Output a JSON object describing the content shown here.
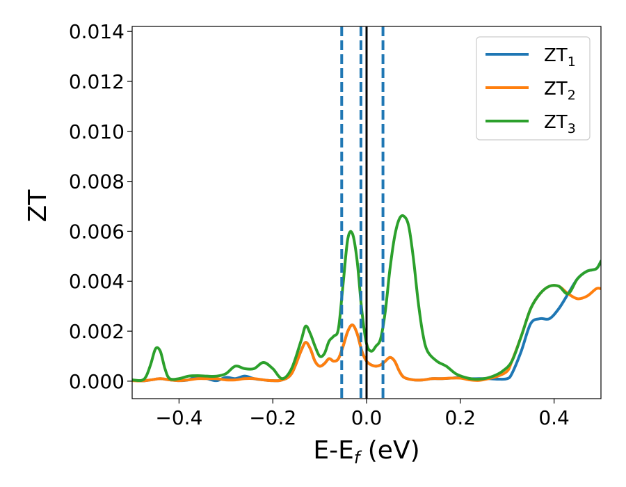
{
  "chart_data": {
    "type": "line",
    "xlabel_main": "E-E",
    "xlabel_sub": "f",
    "xlabel_unit": " (eV)",
    "ylabel": "ZT",
    "xlim": [
      -0.5,
      0.5
    ],
    "ylim": [
      -0.0007,
      0.0142
    ],
    "x_ticks": [
      -0.4,
      -0.2,
      0.0,
      0.2,
      0.4
    ],
    "x_tick_labels": [
      "−0.4",
      "−0.2",
      "0.0",
      "0.2",
      "0.4"
    ],
    "y_ticks": [
      0.0,
      0.002,
      0.004,
      0.006,
      0.008,
      0.01,
      0.012,
      0.014
    ],
    "y_tick_labels": [
      "0.000",
      "0.002",
      "0.004",
      "0.006",
      "0.008",
      "0.010",
      "0.012",
      "0.014"
    ],
    "legend_position": "top-right",
    "vertical_lines": [
      {
        "x": -0.053,
        "style": "dashed",
        "color": "#1f77b4"
      },
      {
        "x": -0.012,
        "style": "dashed",
        "color": "#1f77b4"
      },
      {
        "x": 0.0,
        "style": "solid",
        "color": "#000000"
      },
      {
        "x": 0.035,
        "style": "dashed",
        "color": "#1f77b4"
      }
    ],
    "series": [
      {
        "name": "ZT",
        "sub": "1",
        "color": "#1f77b4",
        "points": [
          [
            -0.5,
            5e-05
          ],
          [
            -0.48,
            1e-05
          ],
          [
            -0.46,
            5e-05
          ],
          [
            -0.44,
            0.0001
          ],
          [
            -0.42,
            5e-05
          ],
          [
            -0.4,
            2e-05
          ],
          [
            -0.38,
            5e-05
          ],
          [
            -0.36,
            0.0002
          ],
          [
            -0.34,
            0.0001
          ],
          [
            -0.32,
            2e-05
          ],
          [
            -0.3,
            0.00015
          ],
          [
            -0.28,
            0.0001
          ],
          [
            -0.26,
            0.0002
          ],
          [
            -0.24,
            0.0001
          ],
          [
            -0.22,
            5e-05
          ],
          [
            -0.2,
            2e-05
          ],
          [
            -0.18,
            5e-05
          ],
          [
            -0.16,
            0.0003
          ],
          [
            -0.14,
            0.0012
          ],
          [
            -0.13,
            0.00155
          ],
          [
            -0.12,
            0.0013
          ],
          [
            -0.11,
            0.0008
          ],
          [
            -0.1,
            0.0006
          ],
          [
            -0.09,
            0.0007
          ],
          [
            -0.08,
            0.0009
          ],
          [
            -0.07,
            0.0008
          ],
          [
            -0.06,
            0.0009
          ],
          [
            -0.05,
            0.0014
          ],
          [
            -0.04,
            0.002
          ],
          [
            -0.03,
            0.00225
          ],
          [
            -0.02,
            0.0019
          ],
          [
            -0.01,
            0.0012
          ],
          [
            0.0,
            0.0008
          ],
          [
            0.01,
            0.00065
          ],
          [
            0.02,
            0.0006
          ],
          [
            0.03,
            0.00065
          ],
          [
            0.04,
            0.0008
          ],
          [
            0.05,
            0.00095
          ],
          [
            0.06,
            0.0008
          ],
          [
            0.07,
            0.0004
          ],
          [
            0.08,
            0.00015
          ],
          [
            0.1,
            5e-05
          ],
          [
            0.12,
            5e-05
          ],
          [
            0.14,
            0.0001
          ],
          [
            0.16,
            0.0001
          ],
          [
            0.18,
            0.00012
          ],
          [
            0.2,
            0.00015
          ],
          [
            0.22,
            0.0001
          ],
          [
            0.24,
            0.0001
          ],
          [
            0.26,
            0.0001
          ],
          [
            0.28,
            8e-05
          ],
          [
            0.3,
            0.0001
          ],
          [
            0.31,
            0.0003
          ],
          [
            0.33,
            0.0012
          ],
          [
            0.35,
            0.0023
          ],
          [
            0.37,
            0.0025
          ],
          [
            0.39,
            0.0025
          ],
          [
            0.41,
            0.0029
          ],
          [
            0.43,
            0.0035
          ],
          [
            0.45,
            0.0041
          ],
          [
            0.47,
            0.0044
          ],
          [
            0.49,
            0.0045
          ],
          [
            0.5,
            0.0048
          ]
        ]
      },
      {
        "name": "ZT",
        "sub": "2",
        "color": "#ff7f0e",
        "points": [
          [
            -0.5,
            2e-05
          ],
          [
            -0.48,
            1e-05
          ],
          [
            -0.46,
            5e-05
          ],
          [
            -0.44,
            0.0001
          ],
          [
            -0.42,
            5e-05
          ],
          [
            -0.4,
            2e-05
          ],
          [
            -0.38,
            5e-05
          ],
          [
            -0.36,
            0.0001
          ],
          [
            -0.34,
            0.0001
          ],
          [
            -0.32,
            0.0001
          ],
          [
            -0.3,
            5e-05
          ],
          [
            -0.28,
            5e-05
          ],
          [
            -0.26,
            0.0001
          ],
          [
            -0.24,
            0.0001
          ],
          [
            -0.22,
            5e-05
          ],
          [
            -0.2,
            2e-05
          ],
          [
            -0.18,
            5e-05
          ],
          [
            -0.16,
            0.0003
          ],
          [
            -0.14,
            0.0012
          ],
          [
            -0.13,
            0.00155
          ],
          [
            -0.12,
            0.0013
          ],
          [
            -0.11,
            0.0008
          ],
          [
            -0.1,
            0.0006
          ],
          [
            -0.09,
            0.0007
          ],
          [
            -0.08,
            0.0009
          ],
          [
            -0.07,
            0.0008
          ],
          [
            -0.06,
            0.0009
          ],
          [
            -0.05,
            0.0014
          ],
          [
            -0.04,
            0.002
          ],
          [
            -0.03,
            0.00225
          ],
          [
            -0.02,
            0.0019
          ],
          [
            -0.01,
            0.0012
          ],
          [
            0.0,
            0.0008
          ],
          [
            0.01,
            0.00065
          ],
          [
            0.02,
            0.0006
          ],
          [
            0.03,
            0.00065
          ],
          [
            0.04,
            0.0008
          ],
          [
            0.05,
            0.00095
          ],
          [
            0.06,
            0.0008
          ],
          [
            0.07,
            0.0004
          ],
          [
            0.08,
            0.00015
          ],
          [
            0.1,
            5e-05
          ],
          [
            0.12,
            5e-05
          ],
          [
            0.14,
            0.0001
          ],
          [
            0.16,
            0.0001
          ],
          [
            0.18,
            0.00012
          ],
          [
            0.2,
            0.00012
          ],
          [
            0.22,
            5e-05
          ],
          [
            0.24,
            3e-05
          ],
          [
            0.26,
            0.0001
          ],
          [
            0.28,
            0.0002
          ],
          [
            0.3,
            0.0004
          ],
          [
            0.31,
            0.0008
          ],
          [
            0.33,
            0.0018
          ],
          [
            0.35,
            0.0029
          ],
          [
            0.37,
            0.0035
          ],
          [
            0.39,
            0.0038
          ],
          [
            0.41,
            0.0038
          ],
          [
            0.43,
            0.0035
          ],
          [
            0.45,
            0.0033
          ],
          [
            0.47,
            0.0034
          ],
          [
            0.49,
            0.0037
          ],
          [
            0.5,
            0.0037
          ]
        ]
      },
      {
        "name": "ZT",
        "sub": "3",
        "color": "#2ca02c",
        "points": [
          [
            -0.5,
            5e-05
          ],
          [
            -0.48,
            3e-05
          ],
          [
            -0.47,
            0.0002
          ],
          [
            -0.46,
            0.0007
          ],
          [
            -0.45,
            0.0013
          ],
          [
            -0.44,
            0.0012
          ],
          [
            -0.43,
            0.0005
          ],
          [
            -0.42,
            0.0001
          ],
          [
            -0.4,
            0.0001
          ],
          [
            -0.38,
            0.0002
          ],
          [
            -0.36,
            0.00022
          ],
          [
            -0.34,
            0.0002
          ],
          [
            -0.32,
            0.0002
          ],
          [
            -0.3,
            0.0003
          ],
          [
            -0.28,
            0.0006
          ],
          [
            -0.26,
            0.0005
          ],
          [
            -0.24,
            0.0005
          ],
          [
            -0.22,
            0.00075
          ],
          [
            -0.2,
            0.0005
          ],
          [
            -0.18,
            0.0001
          ],
          [
            -0.16,
            0.0005
          ],
          [
            -0.14,
            0.0016
          ],
          [
            -0.13,
            0.0022
          ],
          [
            -0.12,
            0.0019
          ],
          [
            -0.11,
            0.0014
          ],
          [
            -0.1,
            0.001
          ],
          [
            -0.09,
            0.0011
          ],
          [
            -0.08,
            0.0016
          ],
          [
            -0.07,
            0.0018
          ],
          [
            -0.06,
            0.0021
          ],
          [
            -0.05,
            0.0039
          ],
          [
            -0.04,
            0.0057
          ],
          [
            -0.03,
            0.0059
          ],
          [
            -0.02,
            0.0048
          ],
          [
            -0.01,
            0.0028
          ],
          [
            0.0,
            0.0015
          ],
          [
            0.01,
            0.0012
          ],
          [
            0.02,
            0.0014
          ],
          [
            0.03,
            0.0017
          ],
          [
            0.04,
            0.0028
          ],
          [
            0.05,
            0.0045
          ],
          [
            0.06,
            0.0058
          ],
          [
            0.07,
            0.0065
          ],
          [
            0.08,
            0.0066
          ],
          [
            0.09,
            0.0062
          ],
          [
            0.1,
            0.0049
          ],
          [
            0.11,
            0.0032
          ],
          [
            0.12,
            0.0019
          ],
          [
            0.13,
            0.0012
          ],
          [
            0.15,
            0.0008
          ],
          [
            0.17,
            0.0006
          ],
          [
            0.19,
            0.0003
          ],
          [
            0.21,
            0.00015
          ],
          [
            0.23,
            8e-05
          ],
          [
            0.25,
            0.0001
          ],
          [
            0.27,
            0.0002
          ],
          [
            0.29,
            0.0004
          ],
          [
            0.31,
            0.0008
          ],
          [
            0.33,
            0.0018
          ],
          [
            0.35,
            0.0029
          ],
          [
            0.37,
            0.0035
          ],
          [
            0.39,
            0.0038
          ],
          [
            0.41,
            0.0038
          ],
          [
            0.43,
            0.0035
          ],
          [
            0.45,
            0.0041
          ],
          [
            0.47,
            0.0044
          ],
          [
            0.49,
            0.0045
          ],
          [
            0.5,
            0.0048
          ]
        ]
      }
    ]
  }
}
